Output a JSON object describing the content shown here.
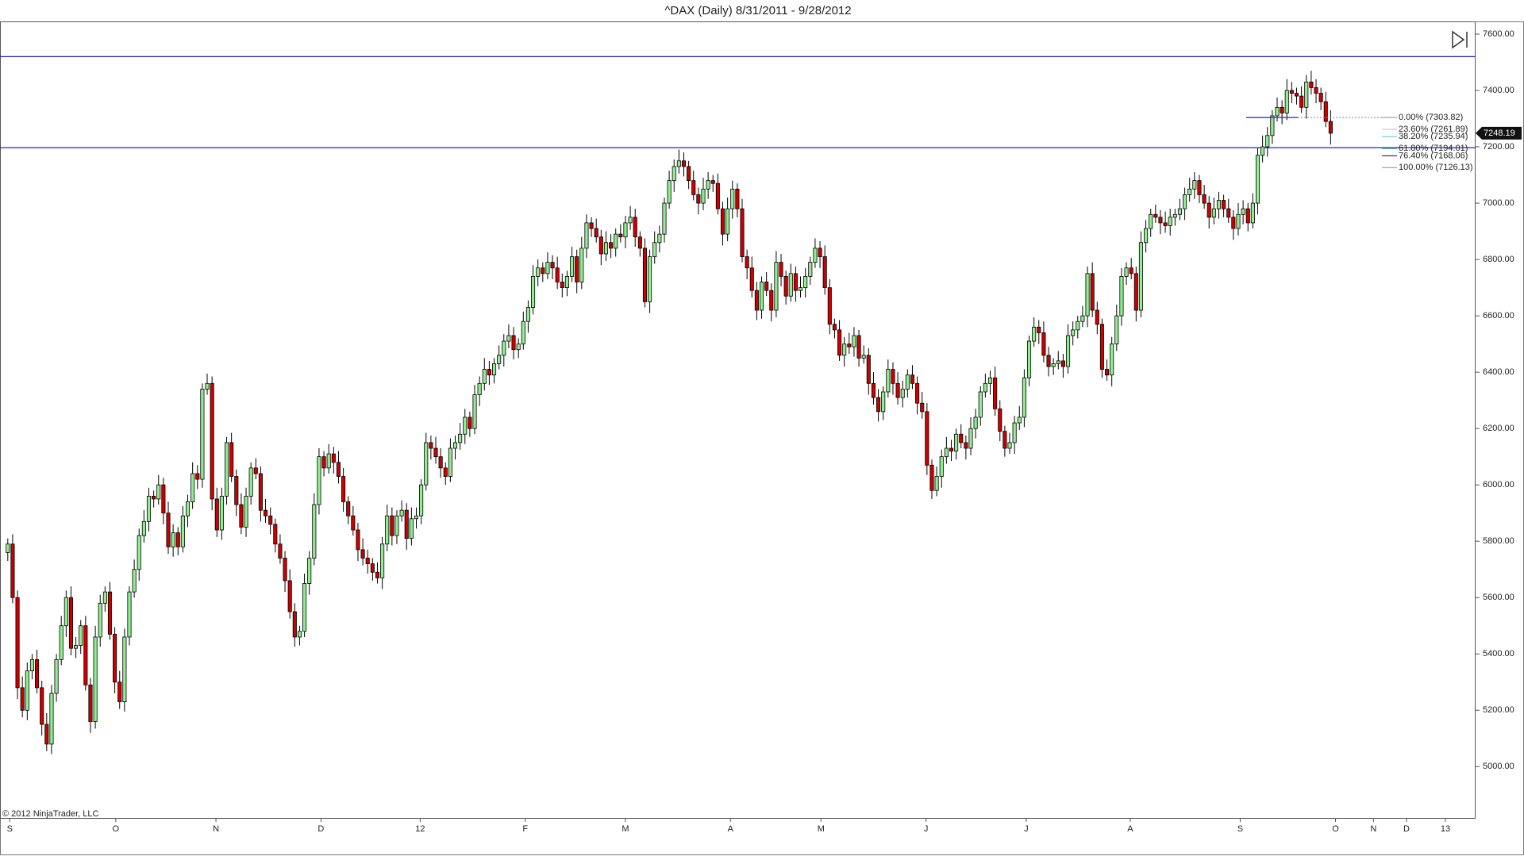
{
  "chart_data": {
    "type": "candlestick",
    "title": "^DAX (Daily)  8/31/2011 - 9/28/2012",
    "copyright": "© 2012 NinjaTrader, LLC",
    "up_color": "#90ee90",
    "down_color": "#cc0000",
    "xlim": [
      -1.6,
      301.8
    ],
    "xticks": [
      {
        "value": 0.4,
        "label": "S"
      },
      {
        "value": 22.2,
        "label": "O"
      },
      {
        "value": 42.8,
        "label": "N"
      },
      {
        "value": 64.4,
        "label": "D"
      },
      {
        "value": 84.8,
        "label": "12"
      },
      {
        "value": 106.4,
        "label": "F"
      },
      {
        "value": 127,
        "label": "M"
      },
      {
        "value": 148.6,
        "label": "A"
      },
      {
        "value": 167.2,
        "label": "M"
      },
      {
        "value": 188.8,
        "label": "J"
      },
      {
        "value": 209.4,
        "label": "J"
      },
      {
        "value": 230.8,
        "label": "A"
      },
      {
        "value": 253.4,
        "label": "S"
      },
      {
        "value": 273,
        "label": "O"
      },
      {
        "value": 280.8,
        "label": "N"
      },
      {
        "value": 287.6,
        "label": "D"
      },
      {
        "value": 295.6,
        "label": "13"
      }
    ],
    "ylim": [
      4815,
      7645
    ],
    "yticks": [
      {
        "value": 5000,
        "label": "5000.00"
      },
      {
        "value": 5200,
        "label": "5200.00"
      },
      {
        "value": 5400,
        "label": "5400.00"
      },
      {
        "value": 5600,
        "label": "5600.00"
      },
      {
        "value": 5800,
        "label": "5800.00"
      },
      {
        "value": 6000,
        "label": "6000.00"
      },
      {
        "value": 6200,
        "label": "6200.00"
      },
      {
        "value": 6400,
        "label": "6400.00"
      },
      {
        "value": 6600,
        "label": "6600.00"
      },
      {
        "value": 6800,
        "label": "6800.00"
      },
      {
        "value": 7000,
        "label": "7000.00"
      },
      {
        "value": 7200,
        "label": "7200.00"
      },
      {
        "value": 7400,
        "label": "7400.00"
      },
      {
        "value": 7600,
        "label": "7600.00"
      }
    ],
    "hlines": [
      7520,
      7197
    ],
    "hline_color": "#2020d0",
    "last_price": 7248.19,
    "fib_levels": [
      {
        "value": 7303.82,
        "label": "0.00% (7303.82)",
        "color": "#999999"
      },
      {
        "value": 7261.89,
        "label": "23.60% (7261.89)",
        "color": "#bbbbbb"
      },
      {
        "value": 7235.94,
        "label": "38.20% (7235.94)",
        "color": "#55c8c8"
      },
      {
        "value": 7194.01,
        "label": "61.80% (7194.01)",
        "color": "#229977"
      },
      {
        "value": 7168.06,
        "label": "76.40% (7168.06)",
        "color": "#000088"
      },
      {
        "value": 7126.13,
        "label": "100.00% (7126.13)",
        "color": "#888888"
      }
    ],
    "open": [
      5760,
      5790,
      5600,
      5280,
      5200,
      5340,
      5380,
      5280,
      5150,
      5080,
      5260,
      5380,
      5500,
      5600,
      5420,
      5430,
      5500,
      5290,
      5160,
      5460,
      5580,
      5620,
      5470,
      5300,
      5230,
      5460,
      5620,
      5700,
      5820,
      5870,
      5960,
      5950,
      6000,
      5900,
      5780,
      5830,
      5780,
      5890,
      5940,
      6040,
      6020,
      6340,
      6360,
      5950,
      5840,
      5960,
      6150,
      6030,
      5930,
      5850,
      5960,
      6060,
      6040,
      5910,
      5890,
      5860,
      5790,
      5740,
      5660,
      5550,
      5460,
      5480,
      5650,
      5740,
      5930,
      6100,
      6060,
      6110,
      6080,
      6030,
      5940,
      5890,
      5840,
      5770,
      5740,
      5720,
      5690,
      5670,
      5790,
      5890,
      5820,
      5890,
      5910,
      5810,
      5880,
      5890,
      6000,
      6150,
      6130,
      6100,
      6060,
      6030,
      6130,
      6150,
      6180,
      6240,
      6200,
      6320,
      6360,
      6410,
      6390,
      6430,
      6460,
      6510,
      6530,
      6480,
      6500,
      6580,
      6630,
      6740,
      6770,
      6750,
      6790,
      6770,
      6720,
      6700,
      6740,
      6810,
      6720,
      6840,
      6930,
      6910,
      6880,
      6820,
      6860,
      6840,
      6890,
      6880,
      6930,
      6950,
      6880,
      6840,
      6650,
      6810,
      6860,
      6890,
      7000,
      7080,
      7130,
      7150,
      7130,
      7080,
      7030,
      7000,
      7050,
      7080,
      7070,
      6980,
      6890,
      6980,
      7050,
      6980,
      6810,
      6770,
      6690,
      6620,
      6720,
      6690,
      6620,
      6790,
      6740,
      6670,
      6750,
      6690,
      6700,
      6740,
      6790,
      6840,
      6810,
      6700,
      6570,
      6550,
      6460,
      6500,
      6490,
      6530,
      6450,
      6460,
      6360,
      6310,
      6260,
      6330,
      6410,
      6360,
      6310,
      6340,
      6390,
      6360,
      6290,
      6260,
      6070,
      5980,
      6030,
      6100,
      6130,
      6120,
      6180,
      6150,
      6130,
      6200,
      6240,
      6330,
      6360,
      6380,
      6270,
      6190,
      6130,
      6150,
      6220,
      6240,
      6380,
      6510,
      6560,
      6540,
      6460,
      6420,
      6430,
      6440,
      6420,
      6530,
      6550,
      6580,
      6600,
      6750,
      6620,
      6570,
      6410,
      6390,
      6500,
      6600,
      6740,
      6770,
      6750,
      6620,
      6860,
      6910,
      6960,
      6950,
      6930,
      6920,
      6950,
      6960,
      6980,
      7030,
      7050,
      7080,
      7030,
      7000,
      6950,
      6980,
      7010,
      6980,
      6950,
      6910,
      6960,
      6980,
      6930,
      7000,
      7170,
      7200,
      7240,
      7310,
      7340,
      7320,
      7400,
      7390,
      7380,
      7340,
      7430,
      7410,
      7390,
      7360,
      7290
    ],
    "high": [
      5810,
      5825,
      5625,
      5320,
      5370,
      5400,
      5415,
      5305,
      5190,
      5290,
      5400,
      5535,
      5625,
      5640,
      5460,
      5520,
      5535,
      5315,
      5500,
      5610,
      5640,
      5655,
      5495,
      5340,
      5490,
      5640,
      5735,
      5845,
      5910,
      5990,
      5980,
      6035,
      6025,
      5940,
      5860,
      5850,
      5925,
      5965,
      6080,
      6070,
      6360,
      6395,
      6385,
      5990,
      5990,
      6170,
      6185,
      6055,
      5970,
      5990,
      6080,
      6095,
      6065,
      5950,
      5920,
      5880,
      5825,
      5765,
      5700,
      5580,
      5500,
      5685,
      5765,
      5970,
      6130,
      6120,
      6145,
      6135,
      6120,
      6060,
      5960,
      5925,
      5865,
      5810,
      5770,
      5740,
      5725,
      5815,
      5930,
      5920,
      5910,
      5945,
      5935,
      5920,
      5920,
      6020,
      6185,
      6175,
      6170,
      6130,
      6080,
      6165,
      6175,
      6220,
      6270,
      6260,
      6355,
      6385,
      6450,
      6440,
      6450,
      6495,
      6535,
      6570,
      6560,
      6520,
      6615,
      6655,
      6780,
      6800,
      6790,
      6825,
      6815,
      6810,
      6750,
      6760,
      6845,
      6835,
      6880,
      6960,
      6950,
      6945,
      6905,
      6900,
      6890,
      6910,
      6925,
      6955,
      6990,
      6980,
      6900,
      6875,
      6835,
      6900,
      6920,
      7020,
      7115,
      7155,
      7190,
      7180,
      7150,
      7115,
      7055,
      7090,
      7110,
      7100,
      7105,
      7005,
      7020,
      7080,
      7070,
      7015,
      6835,
      6810,
      6720,
      6740,
      6755,
      6715,
      6830,
      6820,
      6760,
      6785,
      6775,
      6740,
      6770,
      6810,
      6875,
      6865,
      6850,
      6730,
      6590,
      6585,
      6525,
      6540,
      6560,
      6550,
      6495,
      6485,
      6400,
      6340,
      6350,
      6445,
      6435,
      6400,
      6370,
      6410,
      6425,
      6385,
      6330,
      6290,
      6090,
      6065,
      6125,
      6170,
      6160,
      6200,
      6215,
      6175,
      6240,
      6270,
      6350,
      6395,
      6405,
      6420,
      6300,
      6210,
      6185,
      6245,
      6280,
      6410,
      6530,
      6595,
      6585,
      6580,
      6490,
      6450,
      6475,
      6465,
      6570,
      6580,
      6600,
      6635,
      6775,
      6790,
      6650,
      6590,
      6445,
      6525,
      6640,
      6770,
      6790,
      6805,
      6775,
      6900,
      6940,
      6980,
      6995,
      6975,
      6970,
      6980,
      6980,
      7015,
      7055,
      7090,
      7110,
      7100,
      7065,
      7025,
      7020,
      7040,
      7030,
      7015,
      6975,
      7000,
      7010,
      7000,
      7035,
      7195,
      7240,
      7270,
      7330,
      7375,
      7365,
      7440,
      7430,
      7410,
      7415,
      7455,
      7470,
      7440,
      7410,
      7395,
      7330
    ],
    "low": [
      5730,
      5580,
      5240,
      5175,
      5165,
      5310,
      5260,
      5110,
      5055,
      5045,
      5230,
      5360,
      5460,
      5395,
      5385,
      5400,
      5270,
      5120,
      5135,
      5425,
      5550,
      5450,
      5260,
      5205,
      5195,
      5430,
      5600,
      5660,
      5795,
      5835,
      5920,
      5930,
      5860,
      5755,
      5745,
      5750,
      5760,
      5850,
      5915,
      5985,
      5990,
      6320,
      5910,
      5815,
      5805,
      5930,
      6010,
      5890,
      5825,
      5815,
      5930,
      6020,
      5870,
      5865,
      5825,
      5760,
      5720,
      5620,
      5525,
      5425,
      5430,
      5460,
      5610,
      5715,
      5895,
      6030,
      6040,
      6040,
      6005,
      5905,
      5860,
      5820,
      5730,
      5715,
      5685,
      5660,
      5650,
      5630,
      5765,
      5785,
      5790,
      5870,
      5770,
      5785,
      5845,
      5860,
      5980,
      6090,
      6075,
      6025,
      6000,
      6010,
      6090,
      6125,
      6145,
      6170,
      6180,
      6280,
      6335,
      6355,
      6360,
      6410,
      6420,
      6485,
      6445,
      6450,
      6480,
      6540,
      6605,
      6705,
      6720,
      6730,
      6730,
      6695,
      6665,
      6670,
      6720,
      6680,
      6695,
      6805,
      6880,
      6860,
      6780,
      6795,
      6805,
      6810,
      6860,
      6840,
      6905,
      6845,
      6810,
      6630,
      6610,
      6785,
      6825,
      6860,
      6980,
      7040,
      7105,
      7095,
      7050,
      7010,
      6960,
      6975,
      7015,
      7040,
      6960,
      6850,
      6865,
      6945,
      6950,
      6790,
      6730,
      6665,
      6585,
      6590,
      6670,
      6580,
      6595,
      6705,
      6640,
      6650,
      6650,
      6665,
      6665,
      6710,
      6770,
      6770,
      6675,
      6535,
      6520,
      6440,
      6420,
      6465,
      6455,
      6420,
      6430,
      6320,
      6285,
      6225,
      6230,
      6310,
      6320,
      6285,
      6275,
      6310,
      6340,
      6250,
      6235,
      6035,
      5950,
      5960,
      5990,
      6075,
      6085,
      6090,
      6130,
      6090,
      6105,
      6165,
      6210,
      6310,
      6320,
      6245,
      6155,
      6100,
      6110,
      6110,
      6195,
      6205,
      6350,
      6490,
      6500,
      6435,
      6385,
      6390,
      6410,
      6380,
      6395,
      6495,
      6520,
      6560,
      6560,
      6595,
      6535,
      6380,
      6370,
      6350,
      6475,
      6565,
      6710,
      6730,
      6580,
      6595,
      6825,
      6880,
      6930,
      6890,
      6895,
      6885,
      6920,
      6940,
      6940,
      7005,
      7015,
      7000,
      6980,
      6910,
      6925,
      6945,
      6950,
      6930,
      6870,
      6885,
      6925,
      6900,
      6910,
      6960,
      7145,
      7165,
      7210,
      7290,
      7280,
      7295,
      7355,
      7350,
      7320,
      7300,
      7385,
      7355,
      7330,
      7270,
      7208.19
    ],
    "close": [
      5790,
      5600,
      5280,
      5200,
      5340,
      5380,
      5280,
      5150,
      5080,
      5260,
      5380,
      5500,
      5600,
      5420,
      5430,
      5500,
      5290,
      5160,
      5460,
      5580,
      5620,
      5470,
      5300,
      5230,
      5460,
      5620,
      5700,
      5820,
      5870,
      5960,
      5950,
      6000,
      5900,
      5780,
      5830,
      5780,
      5890,
      5940,
      6040,
      6020,
      6340,
      6360,
      5950,
      5840,
      5960,
      6150,
      6030,
      5930,
      5850,
      5960,
      6060,
      6040,
      5910,
      5890,
      5860,
      5790,
      5740,
      5660,
      5550,
      5460,
      5480,
      5650,
      5740,
      5930,
      6100,
      6060,
      6110,
      6080,
      6030,
      5940,
      5890,
      5840,
      5770,
      5740,
      5720,
      5690,
      5670,
      5790,
      5890,
      5820,
      5890,
      5910,
      5810,
      5880,
      5890,
      6000,
      6150,
      6130,
      6100,
      6060,
      6030,
      6130,
      6150,
      6180,
      6240,
      6200,
      6320,
      6360,
      6410,
      6390,
      6430,
      6460,
      6510,
      6530,
      6480,
      6500,
      6580,
      6630,
      6740,
      6770,
      6750,
      6790,
      6770,
      6720,
      6700,
      6740,
      6810,
      6720,
      6840,
      6930,
      6910,
      6880,
      6820,
      6860,
      6840,
      6890,
      6880,
      6930,
      6950,
      6880,
      6840,
      6650,
      6810,
      6860,
      6890,
      7000,
      7080,
      7130,
      7150,
      7130,
      7080,
      7030,
      7000,
      7050,
      7080,
      7070,
      6980,
      6890,
      6980,
      7050,
      6980,
      6810,
      6770,
      6690,
      6620,
      6720,
      6690,
      6620,
      6790,
      6740,
      6670,
      6750,
      6690,
      6700,
      6740,
      6790,
      6840,
      6810,
      6700,
      6570,
      6550,
      6460,
      6500,
      6490,
      6530,
      6450,
      6460,
      6360,
      6310,
      6260,
      6330,
      6410,
      6360,
      6310,
      6340,
      6390,
      6360,
      6290,
      6260,
      6070,
      5980,
      6030,
      6100,
      6130,
      6120,
      6180,
      6150,
      6130,
      6200,
      6240,
      6330,
      6360,
      6380,
      6270,
      6190,
      6130,
      6150,
      6220,
      6240,
      6380,
      6510,
      6560,
      6540,
      6460,
      6420,
      6430,
      6440,
      6420,
      6530,
      6550,
      6580,
      6600,
      6750,
      6620,
      6570,
      6410,
      6390,
      6500,
      6600,
      6740,
      6770,
      6750,
      6620,
      6860,
      6910,
      6960,
      6950,
      6930,
      6920,
      6950,
      6960,
      6980,
      7030,
      7050,
      7080,
      7030,
      7000,
      6950,
      6980,
      7010,
      6980,
      6950,
      6910,
      6960,
      6980,
      6930,
      7000,
      7170,
      7200,
      7240,
      7310,
      7340,
      7320,
      7400,
      7390,
      7380,
      7340,
      7430,
      7410,
      7390,
      7360,
      7290,
      7248.19
    ]
  }
}
